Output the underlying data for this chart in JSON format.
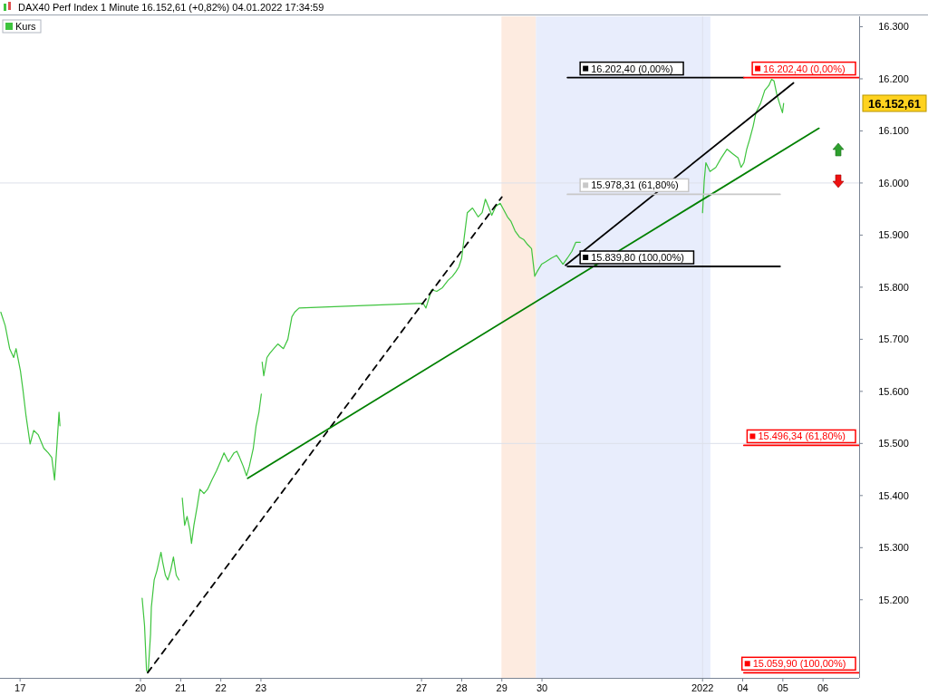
{
  "chart_data": {
    "type": "line",
    "title": "DAX40 Perf Index 1 Minute 16.152,61 (+0,82%) 04.01.2022 17:34:59",
    "xlim": [
      "2021-12-16T12:00",
      "2022-01-06T21:36"
    ],
    "ylim": [
      15050,
      16320
    ],
    "xticks": [
      {
        "value": "2021-12-17",
        "label": "17"
      },
      {
        "value": "2021-12-20",
        "label": "20"
      },
      {
        "value": "2021-12-21",
        "label": "21"
      },
      {
        "value": "2021-12-22",
        "label": "22"
      },
      {
        "value": "2021-12-23",
        "label": "23"
      },
      {
        "value": "2021-12-27",
        "label": "27"
      },
      {
        "value": "2021-12-28",
        "label": "28"
      },
      {
        "value": "2021-12-29",
        "label": "29"
      },
      {
        "value": "2021-12-30",
        "label": "30"
      },
      {
        "value": "2022-01-03",
        "label": "2022"
      },
      {
        "value": "2022-01-04",
        "label": "04"
      },
      {
        "value": "2022-01-05",
        "label": "05"
      },
      {
        "value": "2022-01-06",
        "label": "06"
      }
    ],
    "yticks": [
      {
        "value": 15200,
        "label": "15.200"
      },
      {
        "value": 15300,
        "label": "15.300"
      },
      {
        "value": 15400,
        "label": "15.400"
      },
      {
        "value": 15500,
        "label": "15.500"
      },
      {
        "value": 15600,
        "label": "15.600"
      },
      {
        "value": 15700,
        "label": "15.700"
      },
      {
        "value": 15800,
        "label": "15.800"
      },
      {
        "value": 15900,
        "label": "15.900"
      },
      {
        "value": 16000,
        "label": "16.000"
      },
      {
        "value": 16100,
        "label": "16.100"
      },
      {
        "value": 16200,
        "label": "16.200"
      },
      {
        "value": 16300,
        "label": "16.300"
      }
    ],
    "legend": "top left",
    "marker": "none",
    "line_style": "solid",
    "series": [
      {
        "name": "Kurs",
        "color": "#3ec43e",
        "x": [
          "2021-12-16T12:29",
          "2021-12-16T15:07",
          "2021-12-16T17:46",
          "2021-12-16T20:10",
          "2021-12-16T21:36",
          "2021-12-17T00:14",
          "2021-12-17T01:41",
          "2021-12-17T03:36",
          "2021-12-17T06:00",
          "2021-12-17T08:10",
          "2021-12-17T10:48",
          "2021-12-17T14:10",
          "2021-12-17T16:48",
          "2021-12-17T18:58",
          "2021-12-17T20:38",
          "2021-12-17T22:05",
          "2021-12-17T23:17",
          "2021-12-17T23:50",
          "2021-12-18T12:00",
          "2021-12-20T00:58",
          "2021-12-20T02:24",
          "2021-12-20T03:36",
          "2021-12-20T04:34",
          "2021-12-20T06:00",
          "2021-12-20T06:29",
          "2021-12-20T08:10",
          "2021-12-20T09:50",
          "2021-12-20T12:14",
          "2021-12-20T13:12",
          "2021-12-20T14:53",
          "2021-12-20T16:19",
          "2021-12-20T18:00",
          "2021-12-20T19:41",
          "2021-12-20T21:22",
          "2021-12-20T23:02",
          "2021-12-21T00:00",
          "2021-12-21T00:58",
          "2021-12-21T02:24",
          "2021-12-21T03:50",
          "2021-12-21T05:31",
          "2021-12-21T06:29",
          "2021-12-21T07:55",
          "2021-12-21T09:50",
          "2021-12-21T11:31",
          "2021-12-21T13:55",
          "2021-12-21T16:05",
          "2021-12-21T18:43",
          "2021-12-21T21:22",
          "2021-12-21T23:46",
          "2021-12-22T01:55",
          "2021-12-22T04:34",
          "2021-12-22T07:55",
          "2021-12-22T09:36",
          "2021-12-22T11:17",
          "2021-12-22T13:26",
          "2021-12-22T15:22",
          "2021-12-22T17:02",
          "2021-12-22T19:26",
          "2021-12-22T21:07",
          "2021-12-22T22:48",
          "2021-12-23T00:14",
          "2021-12-23T00:29",
          "2021-12-23T00:43",
          "2021-12-23T01:41",
          "2021-12-23T03:36",
          "2021-12-23T05:17",
          "2021-12-23T07:41",
          "2021-12-23T10:05",
          "2021-12-23T13:26",
          "2021-12-23T16:05",
          "2021-12-23T18:29",
          "2021-12-23T20:10",
          "2021-12-23T22:48",
          "2021-12-27T00:58",
          "2021-12-27T02:38",
          "2021-12-27T06:00",
          "2021-12-27T09:07",
          "2021-12-27T12:29",
          "2021-12-27T15:50",
          "2021-12-27T18:29",
          "2021-12-27T20:38",
          "2021-12-27T22:19",
          "2021-12-28T00:00",
          "2021-12-28T01:41",
          "2021-12-28T03:22",
          "2021-12-28T06:29",
          "2021-12-28T09:50",
          "2021-12-28T12:14",
          "2021-12-28T14:10",
          "2021-12-28T16:19",
          "2021-12-28T18:00",
          "2021-12-28T20:24",
          "2021-12-28T23:02",
          "2021-12-29T01:12",
          "2021-12-29T03:22",
          "2021-12-29T05:31",
          "2021-12-29T07:55",
          "2021-12-29T10:34",
          "2021-12-29T13:12",
          "2021-12-29T15:22",
          "2021-12-29T17:46",
          "2021-12-29T19:41",
          "2021-12-29T21:07",
          "2021-12-29T23:46",
          "2021-12-30T01:54",
          "2021-12-30T05:43",
          "2021-12-30T08:46",
          "2021-12-30T12:34",
          "2021-12-30T15:14",
          "2021-12-30T17:54",
          "2021-12-30T20:11",
          "2021-12-30T22:51",
          "2021-12-30T23:26",
          "2022-01-03T00:00",
          "2022-01-03T00:59",
          "2022-01-03T01:59",
          "2022-01-03T04:27",
          "2022-01-03T07:55",
          "2022-01-03T11:08",
          "2022-01-03T14:36",
          "2022-01-03T18:04",
          "2022-01-03T21:17",
          "2022-01-03T23:01",
          "2022-01-04T00:43",
          "2022-01-04T02:24",
          "2022-01-04T04:05",
          "2022-01-04T06:14",
          "2022-01-04T07:55",
          "2022-01-04T10:34",
          "2022-01-04T13:12",
          "2022-01-04T15:36",
          "2022-01-04T17:17",
          "2022-01-04T18:43",
          "2022-01-04T20:24",
          "2022-01-04T22:05",
          "2022-01-04T23:46",
          "2022-01-05T00:29"
        ],
        "values": [
          15752,
          15726,
          15682,
          15665,
          15682,
          15639,
          15604,
          15552,
          15499,
          15525,
          15517,
          15491,
          15482,
          15473,
          15430,
          15499,
          15560,
          15534,
          null,
          15203,
          15151,
          15064,
          15060,
          15134,
          15186,
          15238,
          15256,
          15291,
          15273,
          15247,
          15238,
          15256,
          15282,
          15247,
          15238,
          null,
          15395,
          15343,
          15360,
          15334,
          15308,
          15343,
          15378,
          15412,
          15404,
          15412,
          15430,
          15447,
          15465,
          15482,
          15465,
          15482,
          15485,
          15473,
          15456,
          15438,
          15456,
          15491,
          15534,
          15560,
          15595,
          null,
          15656,
          15630,
          15665,
          15673,
          15682,
          15691,
          15682,
          15700,
          15743,
          15752,
          15760,
          15769,
          15760,
          15795,
          15792,
          15799,
          15813,
          15821,
          15830,
          15839,
          15856,
          15900,
          15943,
          15952,
          15935,
          15943,
          15969,
          15952,
          15938,
          15955,
          15961,
          15948,
          15935,
          15926,
          15908,
          15896,
          15891,
          15882,
          15874,
          15821,
          15830,
          15844,
          15848,
          15856,
          15861,
          15844,
          15856,
          15869,
          15886,
          15886,
          null,
          15943,
          16004,
          16039,
          16022,
          16030,
          16048,
          16065,
          16056,
          16048,
          16030,
          16039,
          16065,
          16083,
          16109,
          16135,
          16152,
          16178,
          16187,
          16199,
          16196,
          16170,
          16152,
          16135,
          16153
        ]
      },
      {
        "color": "#000000",
        "line_style": "dashed",
        "x": [
          "2021-12-20T04:19",
          "2021-12-29T00:00"
        ],
        "values": [
          15060,
          15973
        ]
      },
      {
        "color": "#008000",
        "x": [
          "2021-12-22T16:05",
          "2022-01-05T21:33"
        ],
        "values": [
          15433,
          16105
        ]
      },
      {
        "color": "#000000",
        "x": [
          "2021-12-30T14:06",
          "2022-01-05T06:22"
        ],
        "values": [
          15842,
          16192
        ]
      },
      {
        "name": "16.202,40 (0,00%)",
        "color": "#000000",
        "x": [
          "2021-12-30T15:14",
          "2022-01-04T00:43"
        ],
        "values": [
          16202.4,
          16202.4
        ]
      },
      {
        "name": "15.978,31 (61,80%)",
        "color": "#c8c8c8",
        "x": [
          "2021-12-30T15:14",
          "2022-01-04T22:19"
        ],
        "values": [
          15978.31,
          15978.31
        ]
      },
      {
        "name": "15.839,80 (100,00%)",
        "color": "#000000",
        "x": [
          "2021-12-30T15:14",
          "2022-01-04T22:19"
        ],
        "values": [
          15839.8,
          15839.8
        ]
      },
      {
        "name": "16.202,40 (0,00%)",
        "color": "#ff0000",
        "x": [
          "2022-01-04T00:43",
          "2022-01-06T21:36"
        ],
        "values": [
          16202.4,
          16202.4
        ]
      },
      {
        "name": "15.496,34 (61,80%)",
        "color": "#ff0000",
        "x": [
          "2022-01-04T00:43",
          "2022-01-06T21:36"
        ],
        "values": [
          15496.34,
          15496.34
        ]
      },
      {
        "name": "15.059,90 (100,00%)",
        "color": "#ff0000",
        "x": [
          "2022-01-04T00:43",
          "2022-01-06T21:36"
        ],
        "values": [
          15059.9,
          15059.9
        ]
      }
    ],
    "bands": [
      {
        "axis": "x",
        "from": "2021-12-28T23:46",
        "to": "2021-12-29T20:24",
        "color": "#fde6d8"
      },
      {
        "axis": "x",
        "from": "2021-12-29T20:24",
        "to": "2022-01-03T04:42",
        "color": "#e2e9fb"
      }
    ],
    "ref_lines": [
      {
        "axis": "y",
        "value": 16000,
        "color": "#dde0ea"
      },
      {
        "axis": "y",
        "value": 15500,
        "color": "#dde0ea"
      },
      {
        "axis": "x",
        "value": "2022-01-03",
        "color": "#dde0ea"
      }
    ],
    "annotations": [
      "16.152,61"
    ]
  }
}
